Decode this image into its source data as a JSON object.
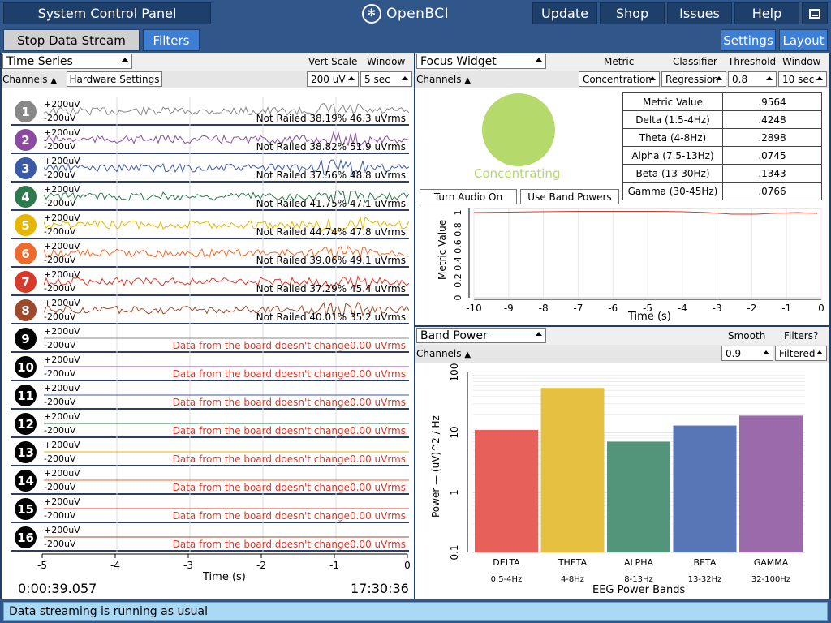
{
  "topbar": {
    "title": "System Control Panel",
    "logo_text": "OpenBCI",
    "buttons": [
      "Update",
      "Shop",
      "Issues",
      "Help"
    ],
    "window_icon": "window-icon"
  },
  "bar2": {
    "stop_stream": "Stop Data Stream",
    "filters": "Filters",
    "settings": "Settings",
    "layout": "Layout"
  },
  "timeseries": {
    "widget": "Time Series",
    "vert_scale_label": "Vert Scale",
    "window_label": "Window",
    "channels_label": "Channels",
    "hardware_settings": "Hardware Settings",
    "vert_scale_value": "200 uV",
    "window_value": "5 sec",
    "plus": "+200uV",
    "minus": "-200uV",
    "channels": [
      {
        "num": "1",
        "color": "#888888",
        "status": "Not Railed 38.19% 46.3 uVrms",
        "active": true
      },
      {
        "num": "2",
        "color": "#8a4a9e",
        "status": "Not Railed 38.82% 51.9 uVrms",
        "active": true
      },
      {
        "num": "3",
        "color": "#3a5aa8",
        "status": "Not Railed 37.56% 48.8 uVrms",
        "active": true
      },
      {
        "num": "4",
        "color": "#2e7a4e",
        "status": "Not Railed 41.75% 47.1 uVrms",
        "active": true
      },
      {
        "num": "5",
        "color": "#e6b600",
        "status": "Not Railed 44.74% 47.8 uVrms",
        "active": true
      },
      {
        "num": "6",
        "color": "#f06a2b",
        "status": "Not Railed 39.06% 49.1 uVrms",
        "active": true
      },
      {
        "num": "7",
        "color": "#d63a2a",
        "status": "Not Railed 37.29% 45.4 uVrms",
        "active": true
      },
      {
        "num": "8",
        "color": "#9e4a2a",
        "status": "Not Railed 40.01% 35.2 uVrms",
        "active": true
      },
      {
        "num": "9",
        "color": "#000000",
        "status": "Data from the board doesn't change0.00 uVrms",
        "active": false,
        "line": "#888888"
      },
      {
        "num": "10",
        "color": "#000000",
        "status": "Data from the board doesn't change0.00 uVrms",
        "active": false,
        "line": "#8a4a9e"
      },
      {
        "num": "11",
        "color": "#000000",
        "status": "Data from the board doesn't change0.00 uVrms",
        "active": false,
        "line": "#3a5aa8"
      },
      {
        "num": "12",
        "color": "#000000",
        "status": "Data from the board doesn't change0.00 uVrms",
        "active": false,
        "line": "#2e7a4e"
      },
      {
        "num": "13",
        "color": "#000000",
        "status": "Data from the board doesn't change0.00 uVrms",
        "active": false,
        "line": "#e6b600"
      },
      {
        "num": "14",
        "color": "#000000",
        "status": "Data from the board doesn't change0.00 uVrms",
        "active": false,
        "line": "#f06a2b"
      },
      {
        "num": "15",
        "color": "#000000",
        "status": "Data from the board doesn't change0.00 uVrms",
        "active": false,
        "line": "#d63a2a"
      },
      {
        "num": "16",
        "color": "#000000",
        "status": "Data from the board doesn't change0.00 uVrms",
        "active": false,
        "line": "#9e4a2a"
      }
    ],
    "x_ticks": [
      "-5",
      "-4",
      "-3",
      "-2",
      "-1",
      "0"
    ],
    "x_label": "Time (s)",
    "elapsed": "0:00:39.057",
    "clock": "17:30:36"
  },
  "focus": {
    "widget": "Focus Widget",
    "metric_label": "Metric",
    "classifier_label": "Classifier",
    "threshold_label": "Threshold",
    "window_label": "Window",
    "channels_label": "Channels",
    "metric_value_dd": "Concentration",
    "classifier_value": "Regression",
    "threshold_value": "0.8",
    "window_value": "10 sec",
    "state": "Concentrating",
    "state_color": "#b5d96b",
    "audio_button": "Turn Audio On",
    "band_powers_button": "Use Band Powers",
    "table": [
      [
        "Metric Value",
        ".9564"
      ],
      [
        "Delta (1.5-4Hz)",
        ".4248"
      ],
      [
        "Theta (4-8Hz)",
        ".2898"
      ],
      [
        "Alpha (7.5-13Hz)",
        ".0745"
      ],
      [
        "Beta (13-30Hz)",
        ".1343"
      ],
      [
        "Gamma (30-45Hz)",
        ".0766"
      ]
    ],
    "chart_y_label": "Metric Value",
    "chart_y_ticks": [
      "0",
      "0.2",
      "0.4",
      "0.6",
      "0.8",
      "1"
    ],
    "chart_x_ticks": [
      "-10",
      "-9",
      "-8",
      "-7",
      "-6",
      "-5",
      "-4",
      "-3",
      "-2",
      "-1",
      "0"
    ],
    "chart_x_label": "Time (s)"
  },
  "bandpower": {
    "widget": "Band Power",
    "smooth_label": "Smooth",
    "filters_label": "Filters?",
    "channels_label": "Channels",
    "smooth_value": "0.9",
    "filters_value": "Filtered",
    "y_label": "Power — (uV)^2 / Hz",
    "y_ticks": [
      "0.1",
      "1",
      "10",
      "100"
    ],
    "x_label": "EEG Power Bands"
  },
  "chart_data": {
    "type": "bar",
    "categories": [
      "DELTA",
      "THETA",
      "ALPHA",
      "BETA",
      "GAMMA"
    ],
    "sublabels": [
      "0.5-4Hz",
      "4-8Hz",
      "8-13Hz",
      "13-32Hz",
      "32-100Hz"
    ],
    "values": [
      11,
      55,
      7,
      13,
      19
    ],
    "colors": [
      "#e8605a",
      "#e6c040",
      "#52957a",
      "#5876b6",
      "#9a6aaa"
    ],
    "ylabel": "Power — (uV)^2 / Hz",
    "xlabel": "EEG Power Bands",
    "ylim": [
      0.1,
      100
    ],
    "yscale": "log"
  },
  "status": {
    "message": "Data streaming is running as usual"
  }
}
